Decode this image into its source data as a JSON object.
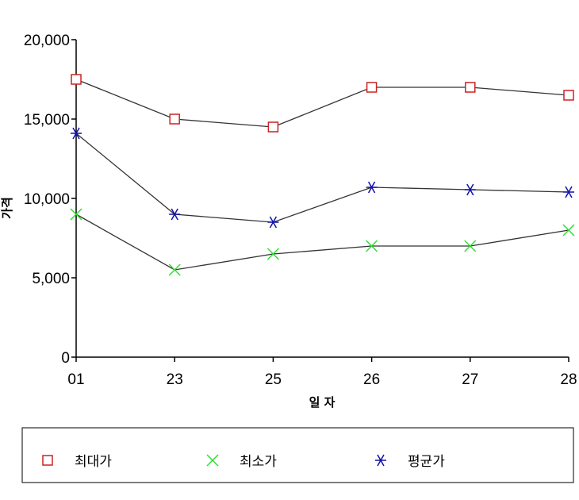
{
  "chart_data": {
    "type": "line",
    "categories": [
      "01",
      "23",
      "25",
      "26",
      "27",
      "28"
    ],
    "series": [
      {
        "name": "최대가",
        "marker": "square",
        "color": "#cc2222",
        "values": [
          17500,
          15000,
          14500,
          17000,
          17000,
          16500
        ]
      },
      {
        "name": "최소가",
        "marker": "x",
        "color": "#33dd33",
        "values": [
          9000,
          5500,
          6500,
          7000,
          7000,
          8000
        ]
      },
      {
        "name": "평균가",
        "marker": "asterisk",
        "color": "#1111aa",
        "values": [
          14100,
          9000,
          8500,
          10700,
          10550,
          10400
        ]
      }
    ],
    "xlabel": "일 자",
    "ylabel": "가격",
    "ylim": [
      0,
      20000
    ],
    "yticks": [
      0,
      5000,
      10000,
      15000,
      20000
    ],
    "ytick_labels": [
      "0",
      "5,000",
      "10,000",
      "15,000",
      "20,000"
    ],
    "line_color": "#333333",
    "grid": false,
    "legend_position": "bottom"
  }
}
